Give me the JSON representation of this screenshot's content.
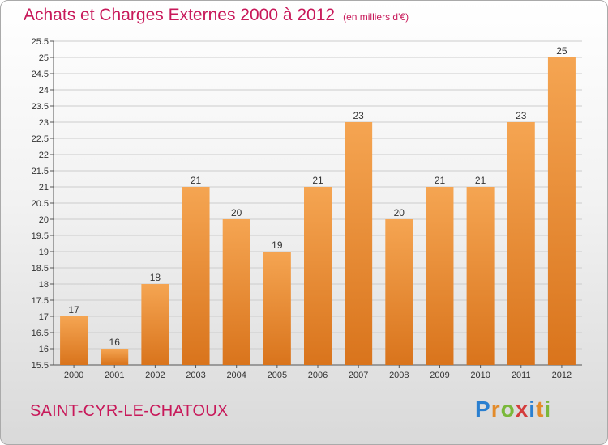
{
  "header": {
    "title": "Achats et Charges Externes 2000 à 2012",
    "unit": "(en milliers d'€)"
  },
  "footer": {
    "city": "SAINT-CYR-LE-CHATOUX",
    "brand_letters": [
      {
        "ch": "P",
        "color": "#2a7fd0"
      },
      {
        "ch": "r",
        "color": "#e38b2a"
      },
      {
        "ch": "o",
        "color": "#7ab83a"
      },
      {
        "ch": "x",
        "color": "#d43c3c"
      },
      {
        "ch": "i",
        "color": "#2a7fd0"
      },
      {
        "ch": "t",
        "color": "#e38b2a"
      },
      {
        "ch": "i",
        "color": "#7ab83a"
      }
    ]
  },
  "chart_data": {
    "type": "bar",
    "categories": [
      "2000",
      "2001",
      "2002",
      "2003",
      "2004",
      "2005",
      "2006",
      "2007",
      "2008",
      "2009",
      "2010",
      "2011",
      "2012"
    ],
    "values": [
      17,
      16,
      18,
      21,
      20,
      19,
      21,
      23,
      20,
      21,
      21,
      23,
      25
    ],
    "ylim": [
      15.5,
      25.5
    ],
    "yticks": [
      "15.5",
      "16",
      "16.5",
      "17",
      "17.5",
      "18",
      "18.5",
      "19",
      "19.5",
      "20",
      "20.5",
      "21",
      "21.5",
      "22",
      "22.5",
      "23",
      "23.5",
      "24",
      "24.5",
      "25",
      "25.5"
    ],
    "grid": true,
    "bar_color_top": "#f5a552",
    "bar_color_bottom": "#d9741c",
    "grid_color": "#cccccc",
    "accent_color": "#c8195a"
  }
}
